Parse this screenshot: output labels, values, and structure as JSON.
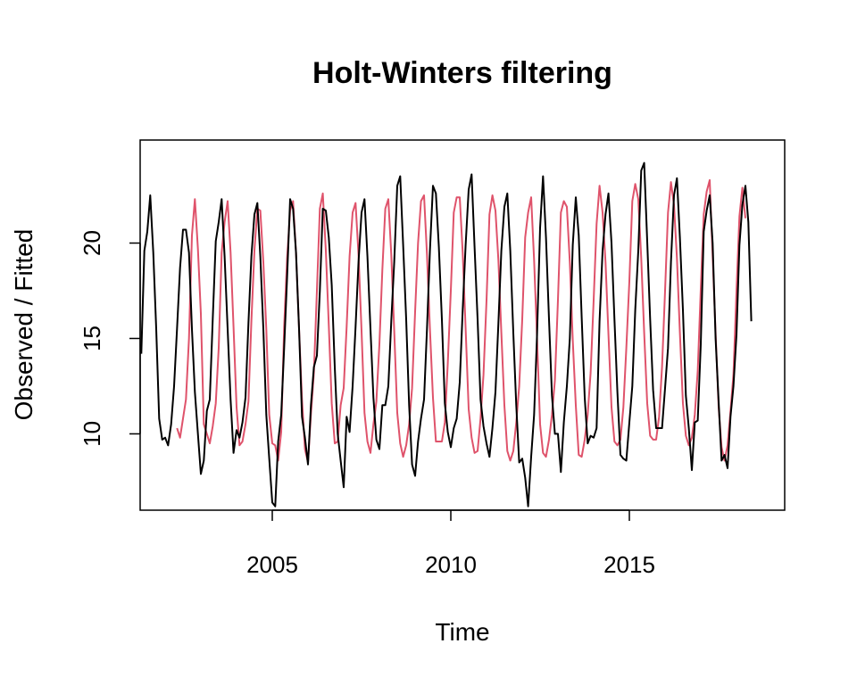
{
  "chart_data": {
    "type": "line",
    "title": "Holt-Winters filtering",
    "xlabel": "Time",
    "ylabel": "Observed / Fitted",
    "xlim": [
      2001.3,
      2019.35
    ],
    "ylim": [
      6.0,
      25.4
    ],
    "x_ticks": [
      2005,
      2010,
      2015
    ],
    "x_tick_labels": [
      "2005",
      "2010",
      "2015"
    ],
    "y_ticks": [
      10,
      15,
      20
    ],
    "y_tick_labels": [
      "10",
      "15",
      "20"
    ],
    "grid": false,
    "legend": "none",
    "x_start": 2001.333,
    "x_step": 0.08333,
    "observed": {
      "color": "#000000",
      "values": [
        14.2,
        19.6,
        20.6,
        22.5,
        19.5,
        15.5,
        10.8,
        9.7,
        9.8,
        9.4,
        10.5,
        12.5,
        15.5,
        18.7,
        20.7,
        20.7,
        19.5,
        15.5,
        12.2,
        10.0,
        7.9,
        8.6,
        11.2,
        11.8,
        16.0,
        20.1,
        21.1,
        22.3,
        19.3,
        15.5,
        11.8,
        9.0,
        10.2,
        9.8,
        10.6,
        11.9,
        15.8,
        19.3,
        21.5,
        22.1,
        19.3,
        15.5,
        11.0,
        8.7,
        6.4,
        6.2,
        9.6,
        11.0,
        14.5,
        18.2,
        22.3,
        21.8,
        19.5,
        15.5,
        10.9,
        9.8,
        8.4,
        11.5,
        13.5,
        14.1,
        17.5,
        21.8,
        21.7,
        20.3,
        17.8,
        13.5,
        10.0,
        8.6,
        7.2,
        10.9,
        10.1,
        12.5,
        15.6,
        19.0,
        21.6,
        22.3,
        19.3,
        15.5,
        11.9,
        9.7,
        9.2,
        11.5,
        11.5,
        12.5,
        15.9,
        19.0,
        23.0,
        23.5,
        19.9,
        16.0,
        11.5,
        8.4,
        7.8,
        9.6,
        10.8,
        11.8,
        15.5,
        19.6,
        23.0,
        22.6,
        19.8,
        16.0,
        11.6,
        10.1,
        9.3,
        10.3,
        10.8,
        12.7,
        16.5,
        19.9,
        22.8,
        23.6,
        19.8,
        16.0,
        11.8,
        10.4,
        9.5,
        8.8,
        10.3,
        12.2,
        15.8,
        19.6,
        21.9,
        22.6,
        19.6,
        15.3,
        11.5,
        8.5,
        8.7,
        7.7,
        6.2,
        8.8,
        11.0,
        15.2,
        20.8,
        23.5,
        20.3,
        16.0,
        12.0,
        10.0,
        10.0,
        8.0,
        10.6,
        12.5,
        15.0,
        19.9,
        22.4,
        20.4,
        16.1,
        11.9,
        9.5,
        9.9,
        9.8,
        10.3,
        15.9,
        19.6,
        21.5,
        22.6,
        20.0,
        16.0,
        12.2,
        8.9,
        8.7,
        8.6,
        10.6,
        12.5,
        16.5,
        19.6,
        23.8,
        24.2,
        20.1,
        16.0,
        12.3,
        10.3,
        10.3,
        10.3,
        12.4,
        14.5,
        19.0,
        22.5,
        23.4,
        20.3,
        16.5,
        12.0,
        10.3,
        8.1,
        10.6,
        10.7,
        14.7,
        20.6,
        21.7,
        22.5,
        20.0,
        15.0,
        11.7,
        8.6,
        8.9,
        8.2,
        10.9,
        12.5,
        15.2,
        19.9,
        22.0,
        23.0,
        21.1,
        15.9
      ]
    },
    "fitted": {
      "color": "#df536b",
      "start_index": 12,
      "values": [
        10.3,
        9.8,
        10.8,
        11.8,
        15.0,
        20.4,
        22.3,
        19.7,
        16.3,
        10.5,
        10.0,
        9.5,
        10.4,
        11.6,
        14.5,
        19.5,
        21.1,
        22.2,
        19.5,
        15.6,
        11.4,
        9.4,
        9.6,
        10.5,
        11.7,
        15.9,
        19.6,
        21.8,
        21.7,
        19.0,
        15.5,
        11.0,
        9.5,
        9.4,
        8.6,
        10.1,
        15.6,
        19.2,
        21.7,
        22.2,
        19.5,
        15.5,
        11.8,
        9.2,
        8.5,
        11.0,
        13.2,
        17.5,
        21.8,
        22.6,
        19.6,
        15.7,
        11.6,
        9.5,
        9.6,
        11.5,
        12.4,
        15.6,
        19.3,
        21.6,
        22.1,
        19.4,
        15.4,
        11.1,
        9.6,
        9.0,
        10.5,
        11.7,
        14.7,
        18.6,
        21.8,
        22.3,
        19.4,
        15.4,
        11.1,
        9.5,
        8.8,
        9.4,
        10.5,
        12.4,
        16.4,
        20.0,
        22.2,
        22.5,
        19.4,
        15.5,
        11.9,
        9.6,
        9.6,
        9.6,
        10.6,
        13.7,
        17.5,
        21.6,
        22.4,
        22.4,
        19.5,
        15.5,
        11.3,
        9.8,
        9.0,
        9.1,
        10.8,
        13.1,
        17.0,
        21.5,
        22.5,
        21.7,
        19.1,
        15.3,
        11.5,
        9.1,
        8.6,
        9.1,
        10.6,
        12.5,
        16.0,
        20.3,
        21.6,
        22.4,
        19.1,
        15.0,
        10.5,
        9.0,
        8.8,
        9.7,
        11.0,
        12.8,
        17.0,
        21.6,
        22.2,
        21.9,
        19.0,
        14.9,
        11.5,
        8.9,
        8.8,
        9.7,
        11.0,
        13.2,
        17.0,
        21.0,
        23.0,
        21.6,
        19.0,
        15.2,
        11.4,
        9.6,
        9.4,
        9.7,
        11.4,
        14.5,
        18.0,
        22.2,
        23.1,
        22.3,
        19.2,
        15.3,
        11.6,
        9.9,
        9.7,
        9.7,
        10.9,
        13.5,
        17.5,
        21.6,
        23.2,
        22.0,
        19.2,
        15.3,
        11.6,
        9.9,
        9.4,
        9.8,
        11.0,
        13.3,
        17.6,
        21.5,
        22.7,
        23.3,
        19.3,
        15.3,
        11.4,
        9.3,
        8.6,
        9.4,
        11.2,
        13.1,
        17.5,
        21.4,
        22.9,
        21.3
      ]
    }
  }
}
